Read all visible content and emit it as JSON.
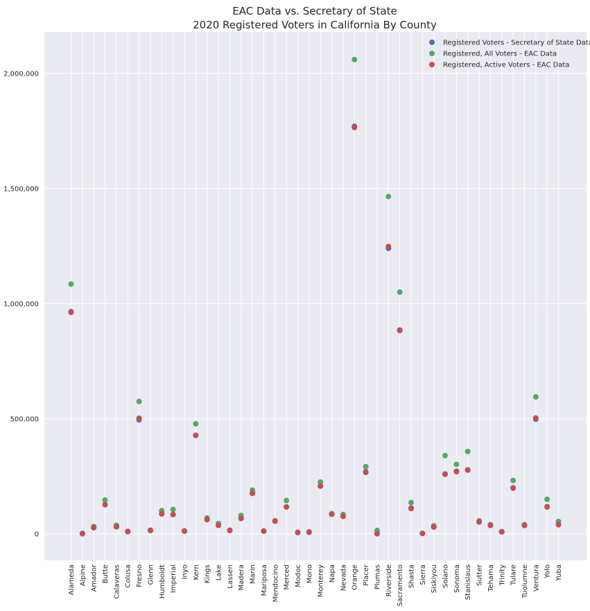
{
  "chart_data": {
    "type": "scatter",
    "title": "EAC Data vs. Secretary of State",
    "subtitle": "2020 Registered Voters in California By County",
    "xlabel": "",
    "ylabel": "",
    "ylim": [
      -115000,
      2180000
    ],
    "yticks": [
      0,
      500000,
      1000000,
      1500000,
      2000000
    ],
    "ytick_labels": [
      "0",
      "500,000",
      "1,000,000",
      "1,500,000",
      "2,000,000"
    ],
    "grid": true,
    "legend_position": "top-right",
    "categories": [
      "Alameda",
      "Alpine",
      "Amador",
      "Butte",
      "Calaveras",
      "Colusa",
      "Fresno",
      "Glenn",
      "Humboldt",
      "Imperial",
      "Inyo",
      "Kern",
      "Kings",
      "Lake",
      "Lassen",
      "Madera",
      "Marin",
      "Mariposa",
      "Mendocino",
      "Merced",
      "Modoc",
      "Mono",
      "Monterey",
      "Napa",
      "Nevada",
      "Orange",
      "Placer",
      "Plumas",
      "Riverside",
      "Sacramento",
      "Shasta",
      "Sierra",
      "Siskiyou",
      "Solano",
      "Sonoma",
      "Stanislaus",
      "Sutter",
      "Tehama",
      "Trinity",
      "Tulare",
      "Tuolumne",
      "Ventura",
      "Yolo",
      "Yuba"
    ],
    "series": [
      {
        "name": "Registered Voters - Secretary of State Data",
        "color": "#4c72b0",
        "values": [
          965000,
          1000,
          27000,
          127000,
          31000,
          10000,
          495000,
          15000,
          87000,
          84000,
          12000,
          428000,
          62000,
          38000,
          15000,
          67000,
          177000,
          12000,
          56000,
          117000,
          6000,
          8000,
          208000,
          86000,
          77000,
          1770000,
          270000,
          1000,
          1240000,
          885000,
          112000,
          2000,
          30000,
          260000,
          272000,
          278000,
          52000,
          37000,
          9000,
          200000,
          37000,
          498000,
          118000,
          40000
        ]
      },
      {
        "name": "Registered, All Voters - EAC Data",
        "color": "#55a868",
        "values": [
          1085000,
          2000,
          32000,
          147000,
          37000,
          11000,
          575000,
          16000,
          101000,
          106000,
          13000,
          478000,
          69000,
          45000,
          16000,
          80000,
          190000,
          13000,
          57000,
          145000,
          7000,
          9000,
          225000,
          88000,
          84000,
          2060000,
          292000,
          15000,
          1465000,
          1050000,
          136000,
          3000,
          35000,
          340000,
          302000,
          358000,
          57000,
          40000,
          10000,
          232000,
          40000,
          595000,
          150000,
          54000
        ]
      },
      {
        "name": "Registered, Active Voters - EAC Data",
        "color": "#c44e52",
        "values": [
          962000,
          1000,
          27000,
          127000,
          31000,
          10000,
          502000,
          15000,
          87000,
          84000,
          12000,
          428000,
          62000,
          37000,
          15000,
          67000,
          176000,
          12000,
          55000,
          117000,
          6000,
          7000,
          208000,
          85000,
          76000,
          1765000,
          267000,
          1000,
          1248000,
          883000,
          110000,
          2000,
          30000,
          259000,
          270000,
          277000,
          52000,
          37000,
          9000,
          199000,
          37000,
          503000,
          117000,
          40000
        ]
      }
    ]
  }
}
